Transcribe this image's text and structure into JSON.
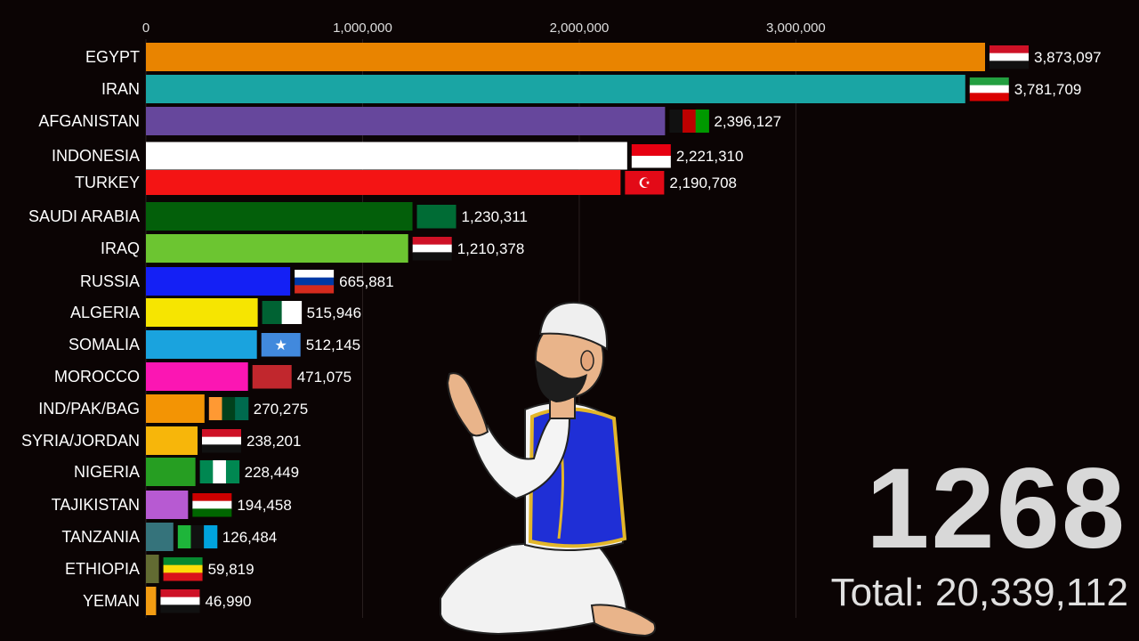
{
  "chart_data": {
    "type": "bar",
    "orientation": "horizontal",
    "xlim": [
      0,
      3873097
    ],
    "x_ticks": [
      0,
      1000000,
      2000000,
      3000000
    ],
    "x_tick_labels": [
      "0",
      "1,000,000",
      "2,000,000",
      "3,000,000"
    ],
    "grid": true,
    "categories": [
      "EGYPT",
      "IRAN",
      "AFGANISTAN",
      "INDONESIA",
      "TURKEY",
      "SAUDI ARABIA",
      "IRAQ",
      "RUSSIA",
      "ALGERIA",
      "SOMALIA",
      "MOROCCO",
      "IND/PAK/BAG",
      "SYRIA/JORDAN",
      "NIGERIA",
      "TAJIKISTAN",
      "TANZANIA",
      "ETHIOPIA",
      "YEMAN"
    ],
    "values": [
      3873097,
      3781709,
      2396127,
      2221310,
      2190708,
      1230311,
      1210378,
      665881,
      515946,
      512145,
      471075,
      270275,
      238201,
      228449,
      194458,
      126484,
      59819,
      46990
    ],
    "value_labels": [
      "3,873,097",
      "3,781,709",
      "2,396,127",
      "2,221,310",
      "2,190,708",
      "1,230,311",
      "1,210,378",
      "665,881",
      "515,946",
      "512,145",
      "471,075",
      "270,275",
      "238,201",
      "228,449",
      "194,458",
      "126,484",
      "59,819",
      "46,990"
    ],
    "colors": [
      "#e98400",
      "#1aa5a4",
      "#66479c",
      "#ffffff",
      "#f41414",
      "#035f0a",
      "#6cc531",
      "#1420f5",
      "#f6e501",
      "#1aa3de",
      "#fb16b3",
      "#f39404",
      "#f7b60a",
      "#269e22",
      "#b75ad2",
      "#35737b",
      "#626b32",
      "#f39c12"
    ],
    "flags": [
      "egypt-flag",
      "iran-flag",
      "afghanistan-flag",
      "indonesia-flag",
      "turkey-flag",
      "saudi-arabia-flag",
      "iraq-flag",
      "russia-flag",
      "algeria-flag",
      "somalia-flag",
      "morocco-flag",
      "india-pakistan-bangladesh-flags",
      "syria-jordan-flags",
      "nigeria-flag",
      "tajikistan-flag",
      "tanzania-flag",
      "ethiopia-flag",
      "yemen-flag"
    ],
    "title": ""
  },
  "year": "1268",
  "total_label": "Total: 20,339,112",
  "illustration": "praying-man-illustration"
}
